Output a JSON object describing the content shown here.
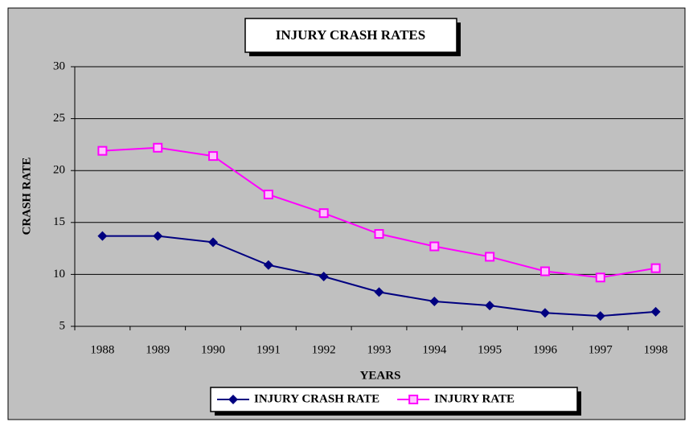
{
  "chart_data": {
    "type": "line",
    "title": "INJURY CRASH RATES",
    "x_label": "YEARS",
    "y_label": "CRASH RATE",
    "categories": [
      "1988",
      "1989",
      "1990",
      "1991",
      "1992",
      "1993",
      "1994",
      "1995",
      "1996",
      "1997",
      "1998"
    ],
    "series": [
      {
        "name": "INJURY CRASH RATE",
        "color": "#000080",
        "marker": "diamond",
        "values": [
          13.7,
          13.7,
          13.1,
          10.9,
          9.8,
          8.3,
          7.4,
          7.0,
          6.3,
          6.0,
          6.4
        ]
      },
      {
        "name": "INJURY RATE",
        "color": "#ff00ff",
        "marker": "square",
        "values": [
          21.9,
          22.2,
          21.4,
          17.7,
          15.9,
          13.9,
          12.7,
          11.7,
          10.3,
          9.7,
          10.6
        ]
      }
    ],
    "ylim": [
      5,
      30
    ],
    "yticks": [
      5,
      10,
      15,
      20,
      25,
      30
    ],
    "grid": true,
    "legend": "bottom"
  }
}
